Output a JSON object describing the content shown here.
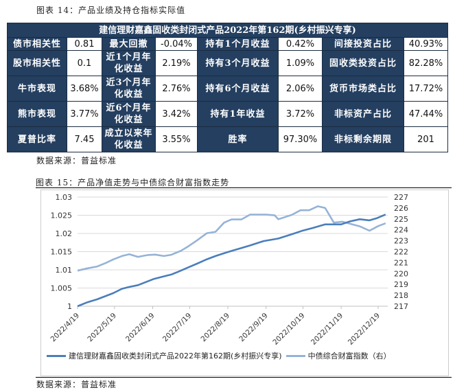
{
  "table_section": {
    "caption": "图表 14：产品业绩及持仓指标实际值",
    "title": "建信理财嘉鑫固收类封闭式产品2022年第162期(乡村振兴专享)",
    "rows": [
      [
        "债市相关性",
        "0.81",
        "最大回撤",
        "-0.04%",
        "持有1个月收益",
        "0.42%",
        "间接投资占比",
        "40.93%"
      ],
      [
        "股市相关性",
        "0.1",
        "近1个月年化收益",
        "2.19%",
        "持有3个月收益",
        "1.09%",
        "固收类投资占比",
        "82.28%"
      ],
      [
        "牛市表现",
        "3.68%",
        "近3个月年化收益",
        "2.76%",
        "持有6个月收益",
        "2.06%",
        "货币市场类占比",
        "17.72%"
      ],
      [
        "熊市表现",
        "3.77%",
        "近6个月年化收益",
        "3.42%",
        "持有1年收益",
        "3.72%",
        "非标资产占比",
        "47.44%"
      ],
      [
        "夏普比率",
        "7.45",
        "成立以来年化收益",
        "3.55%",
        "胜率",
        "97.30%",
        "非标剩余期限",
        "201"
      ]
    ],
    "source": "数据来源：普益标准",
    "header_color": "#243f60"
  },
  "chart_section": {
    "caption": "图表 15：产品净值走势与中债综合财富指数走势",
    "source": "数据来源：普益标准"
  },
  "chart_data": {
    "type": "line",
    "x_ticks": [
      "2022/4/19",
      "2022/5/19",
      "2022/6/19",
      "2022/7/19",
      "2022/8/19",
      "2022/9/19",
      "2022/10/19",
      "2022/11/19",
      "2022/12/19"
    ],
    "y_left": {
      "ticks": [
        "1",
        "1.005",
        "1.01",
        "1.015",
        "1.02",
        "1.025",
        "1.03"
      ],
      "range": [
        1,
        1.03
      ]
    },
    "y_right": {
      "ticks": [
        "217",
        "218",
        "219",
        "220",
        "221",
        "222",
        "223",
        "224",
        "225",
        "226",
        "227"
      ],
      "range": [
        217,
        227
      ]
    },
    "grid": "horizontal",
    "legend": "bottom",
    "series": [
      {
        "name": "建信理财嘉鑫固收类封闭式产品2022年第162期(乡村振兴专享)",
        "axis": "left",
        "color": "#4a7ebb",
        "points": [
          [
            "2022-04-19",
            1.0
          ],
          [
            "2022-04-27",
            1.0011
          ],
          [
            "2022-05-05",
            1.0019
          ],
          [
            "2022-05-18",
            1.0036
          ],
          [
            "2022-05-25",
            1.0048
          ],
          [
            "2022-05-31",
            1.0053
          ],
          [
            "2022-06-07",
            1.0058
          ],
          [
            "2022-06-20",
            1.0075
          ],
          [
            "2022-06-28",
            1.0082
          ],
          [
            "2022-07-04",
            1.0087
          ],
          [
            "2022-07-10",
            1.0095
          ],
          [
            "2022-07-18",
            1.0107
          ],
          [
            "2022-07-25",
            1.0117
          ],
          [
            "2022-08-02",
            1.0129
          ],
          [
            "2022-08-09",
            1.0138
          ],
          [
            "2022-08-18",
            1.0148
          ],
          [
            "2022-08-24",
            1.0154
          ],
          [
            "2022-08-30",
            1.016
          ],
          [
            "2022-09-06",
            1.0167
          ],
          [
            "2022-09-17",
            1.0179
          ],
          [
            "2022-09-29",
            1.0186
          ],
          [
            "2022-10-10",
            1.0198
          ],
          [
            "2022-10-18",
            1.0207
          ],
          [
            "2022-10-27",
            1.0215
          ],
          [
            "2022-11-06",
            1.0225
          ],
          [
            "2022-11-19",
            1.0225
          ],
          [
            "2022-11-26",
            1.0233
          ],
          [
            "2022-12-04",
            1.0239
          ],
          [
            "2022-12-12",
            1.0236
          ],
          [
            "2022-12-18",
            1.0242
          ],
          [
            "2022-12-25",
            1.0252
          ]
        ]
      },
      {
        "name": "中债综合财富指数（右）",
        "axis": "right",
        "color": "#95b3d7",
        "points": [
          [
            "2022-04-19",
            220.26
          ],
          [
            "2022-04-27",
            220.47
          ],
          [
            "2022-05-05",
            220.64
          ],
          [
            "2022-05-12",
            220.97
          ],
          [
            "2022-05-18",
            221.29
          ],
          [
            "2022-05-25",
            221.6
          ],
          [
            "2022-05-31",
            221.77
          ],
          [
            "2022-06-07",
            221.52
          ],
          [
            "2022-06-15",
            221.69
          ],
          [
            "2022-06-21",
            221.73
          ],
          [
            "2022-06-28",
            221.6
          ],
          [
            "2022-07-04",
            221.71
          ],
          [
            "2022-07-12",
            222.08
          ],
          [
            "2022-07-18",
            222.5
          ],
          [
            "2022-07-25",
            223.03
          ],
          [
            "2022-08-02",
            223.69
          ],
          [
            "2022-08-09",
            223.82
          ],
          [
            "2022-08-16",
            224.66
          ],
          [
            "2022-08-22",
            224.95
          ],
          [
            "2022-08-30",
            224.95
          ],
          [
            "2022-09-06",
            225.39
          ],
          [
            "2022-09-19",
            225.39
          ],
          [
            "2022-09-26",
            225.33
          ],
          [
            "2022-09-29",
            224.97
          ],
          [
            "2022-10-10",
            225.37
          ],
          [
            "2022-10-17",
            225.79
          ],
          [
            "2022-10-24",
            225.79
          ],
          [
            "2022-10-31",
            226.16
          ],
          [
            "2022-11-06",
            226.0
          ],
          [
            "2022-11-13",
            224.66
          ],
          [
            "2022-11-20",
            224.74
          ],
          [
            "2022-12-04",
            224.32
          ],
          [
            "2022-12-12",
            223.92
          ],
          [
            "2022-12-19",
            224.34
          ],
          [
            "2022-12-25",
            224.6
          ]
        ]
      }
    ]
  }
}
